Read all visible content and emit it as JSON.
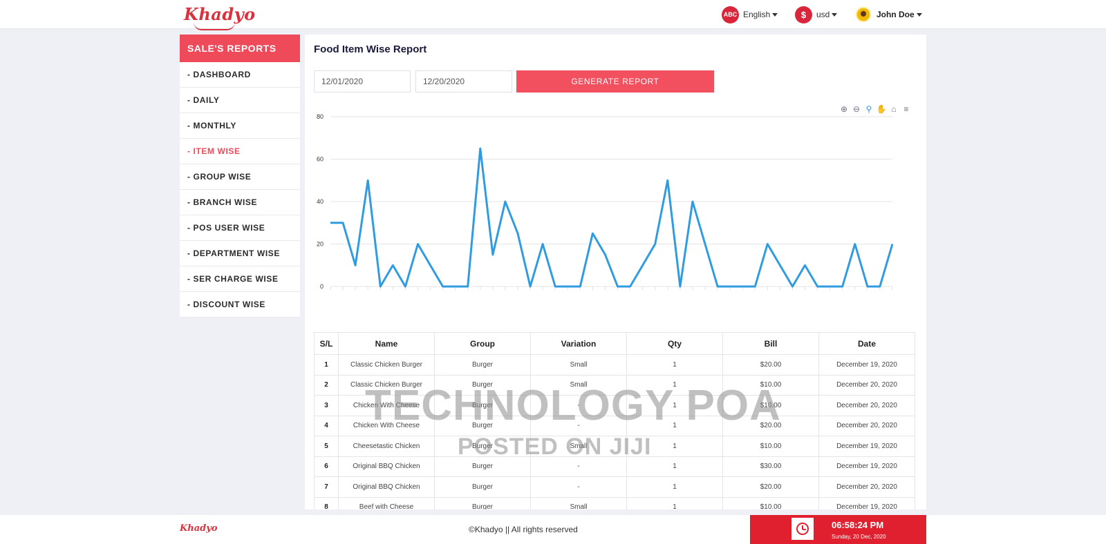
{
  "brand": {
    "name": "Khadyo",
    "brand_color": "#d9323e",
    "accent": "#f24f5f"
  },
  "navbar": {
    "language": {
      "icon": "abc-icon",
      "icon_text": "ABC",
      "label": "English"
    },
    "currency": {
      "icon": "dollar-icon",
      "icon_text": "$",
      "label": "usd"
    },
    "user": {
      "name": "John Doe"
    }
  },
  "sidebar": {
    "header": "SALE'S REPORTS",
    "items": [
      {
        "label": "- DASHBOARD",
        "active": false
      },
      {
        "label": "- DAILY",
        "active": false
      },
      {
        "label": "- MONTHLY",
        "active": false
      },
      {
        "label": "- ITEM WISE",
        "active": true
      },
      {
        "label": "- GROUP WISE",
        "active": false
      },
      {
        "label": "- BRANCH WISE",
        "active": false
      },
      {
        "label": "- POS USER WISE",
        "active": false
      },
      {
        "label": "- DEPARTMENT WISE",
        "active": false
      },
      {
        "label": "- SER CHARGE WISE",
        "active": false
      },
      {
        "label": "- DISCOUNT WISE",
        "active": false
      }
    ]
  },
  "report": {
    "title": "Food Item Wise Report",
    "from_date": "12/01/2020",
    "to_date": "12/20/2020",
    "generate_label": "GENERATE REPORT"
  },
  "chart_data": {
    "type": "line",
    "color": "#2f9be0",
    "ylim": [
      0,
      80
    ],
    "yticks": [
      "80",
      "60",
      "40",
      "20",
      "0"
    ],
    "grid": true,
    "values": [
      30,
      30,
      10,
      50,
      0,
      10,
      0,
      20,
      10,
      0,
      0,
      0,
      65,
      15,
      40,
      25,
      0,
      20,
      0,
      0,
      0,
      25,
      15,
      0,
      0,
      10,
      20,
      50,
      0,
      40,
      20,
      0,
      0,
      0,
      0,
      20,
      10,
      0,
      10,
      0,
      0,
      0,
      20,
      0,
      0,
      20
    ]
  },
  "table": {
    "columns": [
      "S/L",
      "Name",
      "Group",
      "Variation",
      "Qty",
      "Bill",
      "Date"
    ],
    "rows": [
      [
        "1",
        "Classic Chicken Burger",
        "Burger",
        "Small",
        "1",
        "$20.00",
        "December 19, 2020"
      ],
      [
        "2",
        "Classic Chicken Burger",
        "Burger",
        "Small",
        "1",
        "$10.00",
        "December 20, 2020"
      ],
      [
        "3",
        "Chicken With Cheese",
        "Burger",
        "-",
        "1",
        "$10.00",
        "December 20, 2020"
      ],
      [
        "4",
        "Chicken With Cheese",
        "Burger",
        "-",
        "1",
        "$20.00",
        "December 20, 2020"
      ],
      [
        "5",
        "Cheesetastic Chicken",
        "Burger",
        "Small",
        "1",
        "$10.00",
        "December 19, 2020"
      ],
      [
        "6",
        "Original BBQ Chicken",
        "Burger",
        "-",
        "1",
        "$30.00",
        "December 19, 2020"
      ],
      [
        "7",
        "Original BBQ Chicken",
        "Burger",
        "-",
        "1",
        "$20.00",
        "December 20, 2020"
      ],
      [
        "8",
        "Beef with Cheese",
        "Burger",
        "Small",
        "1",
        "$10.00",
        "December 19, 2020"
      ]
    ]
  },
  "watermark": {
    "line1": "TECHNOLOGY POA",
    "line2": "POSTED ON JIJI"
  },
  "footer": {
    "copyright": "©Khadyo || All rights reserved",
    "time": "06:58:24 PM",
    "date": "Sunday, 20 Dec, 2020"
  }
}
